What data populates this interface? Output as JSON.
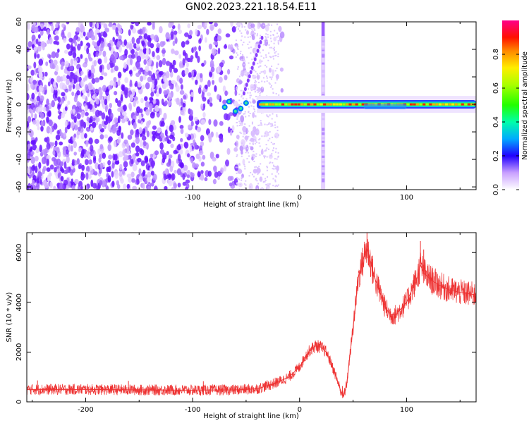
{
  "title": "GN02.2023.221.18.54.E11",
  "chart_data": [
    {
      "type": "heatmap",
      "xlabel": "Height of straight line (km)",
      "ylabel": "Frequency (Hz)",
      "xlim": [
        -255,
        165
      ],
      "ylim": [
        -62,
        60
      ],
      "xticks": [
        -200,
        -100,
        0,
        100
      ],
      "yticks": [
        -60,
        -40,
        -20,
        0,
        20,
        40,
        60
      ],
      "colorbar": {
        "label": "Normalized spectral amplitude",
        "range": [
          0,
          1
        ],
        "ticks": [
          0.0,
          0.2,
          0.4,
          0.6,
          0.8
        ]
      },
      "features": {
        "noise_region_x": [
          -255,
          -40
        ],
        "carrier_line_freq": 0,
        "carrier_line_x": [
          -40,
          165
        ],
        "vertical_artifact_x": 22
      }
    },
    {
      "type": "line",
      "xlabel": "Height of straight line (km)",
      "ylabel": "SNR (10 * v/v)",
      "xlim": [
        -255,
        165
      ],
      "ylim": [
        0,
        6800
      ],
      "xticks": [
        -200,
        -100,
        0,
        100
      ],
      "yticks": [
        0,
        2000,
        4000,
        6000
      ],
      "series": [
        {
          "color": "#ee3333",
          "x": [
            -255,
            -200,
            -150,
            -100,
            -60,
            -40,
            -30,
            -20,
            -10,
            0,
            5,
            10,
            15,
            20,
            25,
            30,
            35,
            38,
            41,
            44,
            50,
            55,
            60,
            63,
            66,
            70,
            75,
            80,
            85,
            90,
            100,
            105,
            110,
            113,
            116,
            120,
            130,
            140,
            150,
            165
          ],
          "values": [
            500,
            500,
            480,
            470,
            480,
            520,
            650,
            800,
            1000,
            1400,
            1800,
            2100,
            2250,
            2200,
            2000,
            1500,
            900,
            500,
            200,
            700,
            3000,
            5000,
            5800,
            6200,
            5700,
            5000,
            4400,
            3800,
            3500,
            3500,
            4000,
            4500,
            5000,
            5500,
            5200,
            5000,
            4700,
            4500,
            4400,
            4300
          ]
        }
      ]
    }
  ]
}
